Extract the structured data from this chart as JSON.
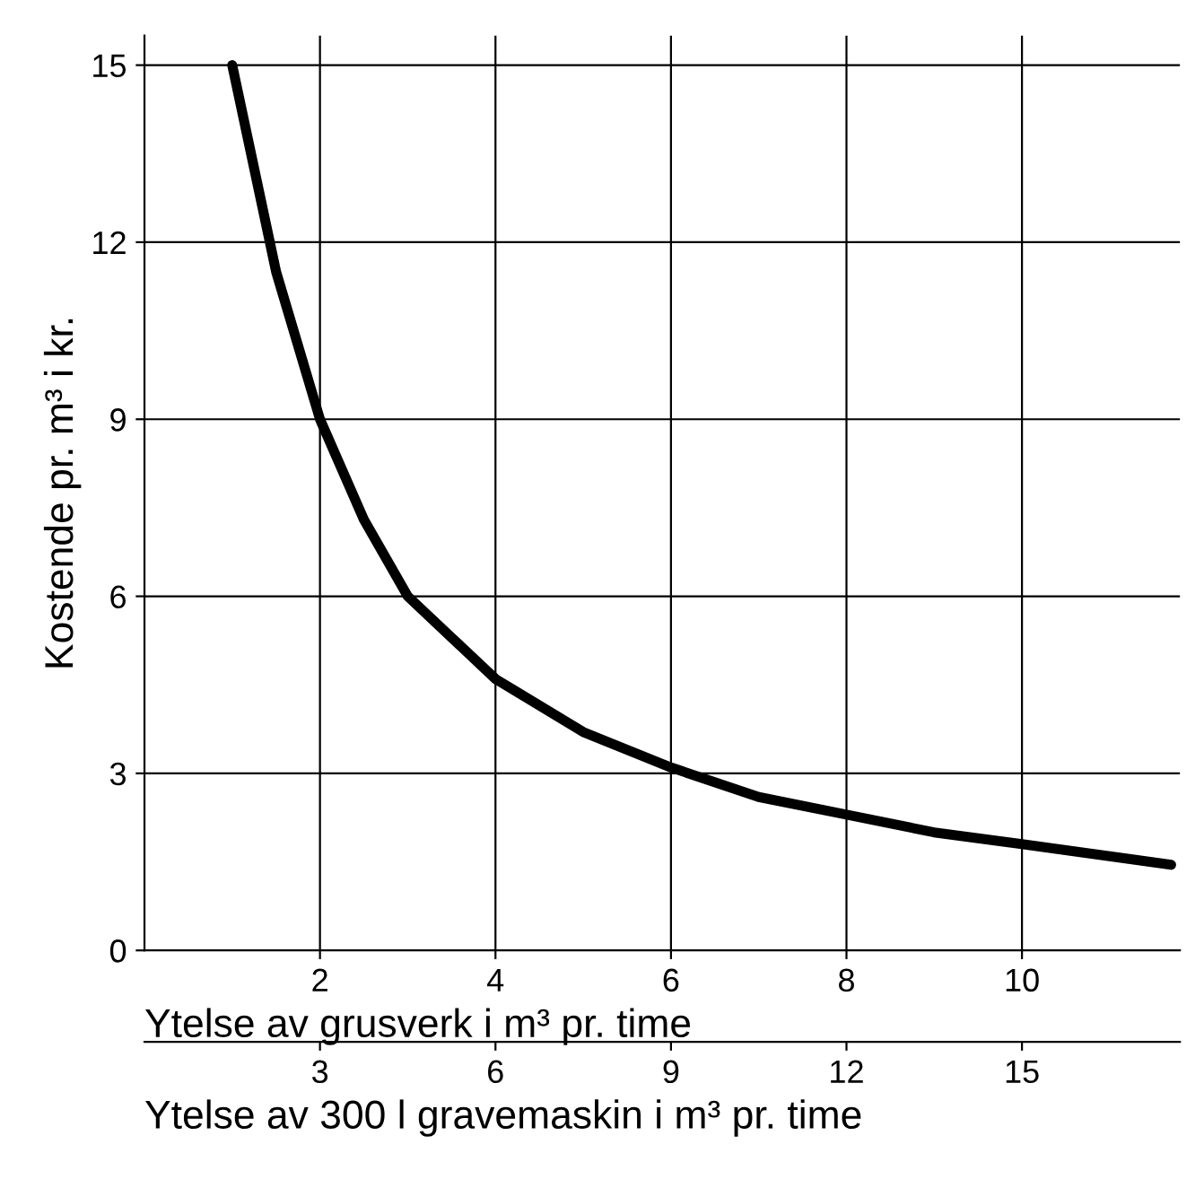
{
  "chart_data": {
    "type": "line",
    "xlabel": "Ytelse av grusverk i m³ pr. time",
    "ylabel": "Kostende pr. m³ i kr.",
    "x2label": "Ytelse av 300 l gravemaskin i m³ pr. time",
    "xlim": [
      0,
      11.8
    ],
    "xticks": [
      2,
      4,
      6,
      8,
      10
    ],
    "ylim": [
      0,
      15.5
    ],
    "yticks": [
      0,
      3,
      6,
      9,
      12,
      15
    ],
    "x2lim": [
      0,
      17.7
    ],
    "x2ticks": [
      3,
      6,
      9,
      12,
      15
    ],
    "grid": true,
    "marker": "none",
    "line_style": "solid",
    "series": [
      {
        "color": "#000000",
        "x": [
          1.0,
          1.5,
          2,
          2.5,
          3,
          4,
          5,
          6,
          7,
          8,
          9,
          10,
          11.7
        ],
        "values": [
          15,
          11.5,
          9,
          7.3,
          6,
          4.6,
          3.7,
          3.1,
          2.6,
          2.3,
          2.0,
          1.8,
          1.45
        ]
      }
    ]
  }
}
